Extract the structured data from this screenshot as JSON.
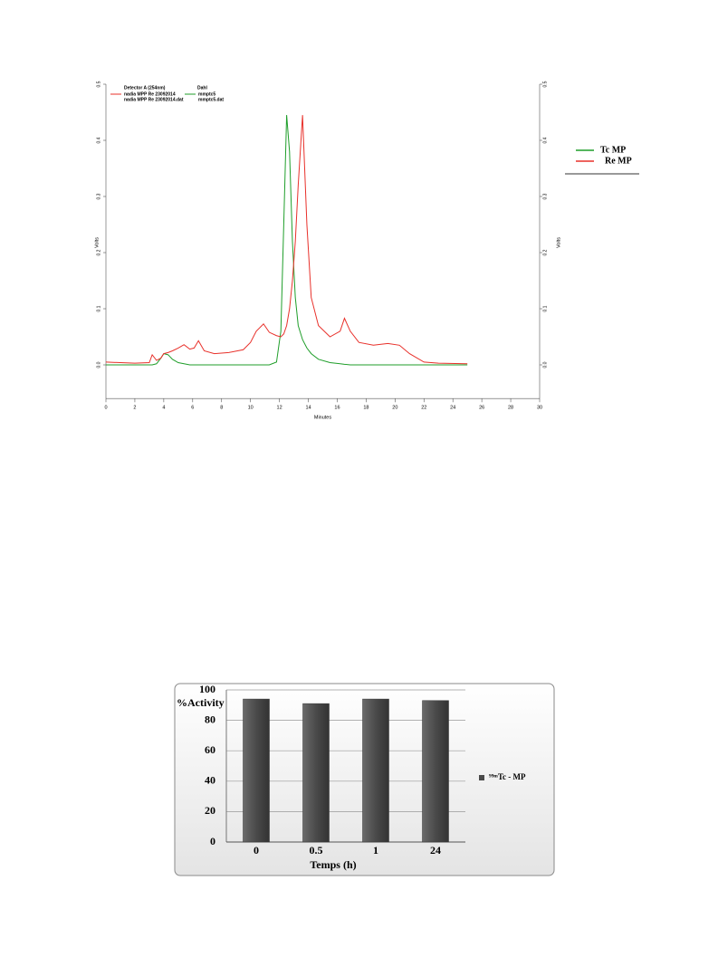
{
  "chart_data": [
    {
      "type": "line",
      "legend_headers": [
        "Detector A (254nm)",
        "Dahl"
      ],
      "x_label": "Minutes",
      "y_label": "Volts",
      "x": [
        0,
        1,
        2,
        3,
        3.2,
        3.5,
        3.8,
        4,
        4.3,
        4.6,
        5,
        5.4,
        5.8,
        6.1,
        6.4,
        6.8,
        7.5,
        8.5,
        9.5,
        10,
        10.4,
        10.9,
        11.3,
        11.8,
        12.1,
        12.3,
        12.5,
        12.7,
        12.9,
        13.1,
        13.3,
        13.6,
        13.9,
        14.2,
        14.7,
        15.5,
        16.2,
        16.5,
        16.9,
        17.5,
        18.5,
        19.5,
        20.3,
        21,
        22,
        23,
        25
      ],
      "series": [
        {
          "name": "Tc MP",
          "color": "#1f9e2a",
          "legend_files": [
            "mmptc5",
            "mmptc5.dat"
          ],
          "values": [
            0,
            0,
            0,
            0,
            0,
            0.002,
            0.012,
            0.02,
            0.018,
            0.01,
            0.004,
            0.002,
            0,
            0,
            0,
            0,
            0,
            0,
            0,
            0,
            0,
            0,
            0,
            0.005,
            0.06,
            0.25,
            0.445,
            0.38,
            0.22,
            0.12,
            0.07,
            0.045,
            0.03,
            0.02,
            0.01,
            0.004,
            0.002,
            0.001,
            0,
            0,
            0,
            0,
            0,
            0,
            0,
            0,
            0
          ]
        },
        {
          "name": "Re MP",
          "color": "#e8302a",
          "legend_files": [
            "nadia MPP Re 23092014",
            "nadia MPP Re 23092014.dat"
          ],
          "values": [
            0.005,
            0.004,
            0.003,
            0.004,
            0.018,
            0.008,
            0.012,
            0.02,
            0.022,
            0.025,
            0.03,
            0.036,
            0.028,
            0.03,
            0.043,
            0.025,
            0.02,
            0.022,
            0.027,
            0.04,
            0.06,
            0.073,
            0.058,
            0.052,
            0.05,
            0.055,
            0.07,
            0.1,
            0.15,
            0.22,
            0.32,
            0.445,
            0.25,
            0.12,
            0.07,
            0.05,
            0.06,
            0.083,
            0.06,
            0.04,
            0.035,
            0.038,
            0.035,
            0.02,
            0.005,
            0.003,
            0.002
          ]
        }
      ],
      "xlim": [
        0,
        30
      ],
      "xticks": [
        0,
        2,
        4,
        6,
        8,
        10,
        12,
        14,
        16,
        18,
        20,
        22,
        24,
        26,
        28,
        30
      ],
      "ylim": [
        -0.06,
        0.5
      ],
      "yticks": [
        {
          "value": 0,
          "label": "0.0"
        },
        0.1,
        0.2,
        0.3,
        0.4,
        0.5
      ]
    },
    {
      "type": "bar",
      "y_label": "%Activity",
      "x_label": "Temps (h)",
      "categories": [
        "0",
        "0.5",
        "1",
        "24"
      ],
      "series": [
        {
          "name": "⁹⁹ᵐTc - MP",
          "color": "#4a4a4a",
          "values": [
            94,
            91,
            94,
            93
          ]
        }
      ],
      "ylim": [
        0,
        100
      ],
      "yticks": [
        0,
        20,
        40,
        60,
        80,
        100
      ],
      "grid": true
    }
  ]
}
